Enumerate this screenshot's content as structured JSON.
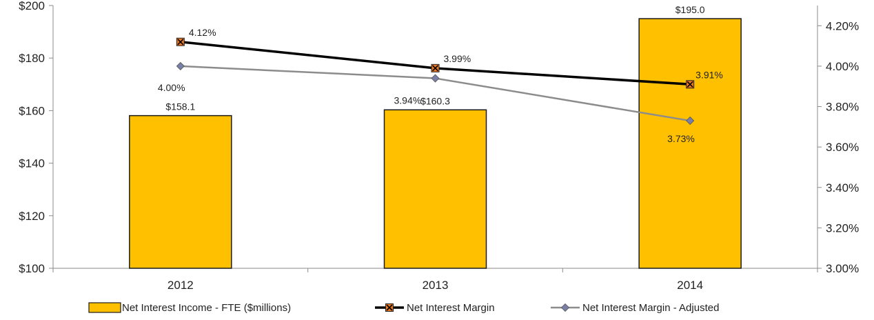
{
  "chart_data": {
    "type": "bar",
    "categories": [
      "2012",
      "2013",
      "2014"
    ],
    "series": [
      {
        "name": "Net Interest Income - FTE ($millions)",
        "type": "bar",
        "axis": "left",
        "values": [
          158.1,
          160.3,
          195.0
        ],
        "labels": [
          "$158.1",
          "$160.3",
          "$195.0"
        ],
        "color": "#FFC000"
      },
      {
        "name": "Net Interest Margin",
        "type": "line",
        "axis": "right",
        "values": [
          4.12,
          3.99,
          3.91
        ],
        "labels": [
          "4.12%",
          "3.99%",
          "3.91%"
        ],
        "color": "#000000",
        "marker": "x-square",
        "marker_color": "#E87722"
      },
      {
        "name": "Net Interest Margin - Adjusted",
        "type": "line",
        "axis": "right",
        "values": [
          4.0,
          3.94,
          3.73
        ],
        "labels": [
          "4.00%",
          "3.94%",
          "3.73%"
        ],
        "color": "#8C8C8C",
        "marker": "diamond",
        "marker_color": "#7A7FA8"
      }
    ],
    "y_left": {
      "ylim": [
        100,
        200
      ],
      "ticks": [
        100,
        120,
        140,
        160,
        180,
        200
      ],
      "tick_labels": [
        "$100",
        "$120",
        "$140",
        "$160",
        "$180",
        "$200"
      ]
    },
    "y_right": {
      "ylim": [
        3.0,
        4.3
      ],
      "ticks": [
        3.0,
        3.2,
        3.4,
        3.6,
        3.8,
        4.0,
        4.2
      ],
      "tick_labels": [
        "3.00%",
        "3.20%",
        "3.40%",
        "3.60%",
        "3.80%",
        "4.00%",
        "4.20%"
      ]
    },
    "title": "",
    "xlabel": "",
    "ylabel": "",
    "legend_position": "bottom",
    "grid": false
  }
}
